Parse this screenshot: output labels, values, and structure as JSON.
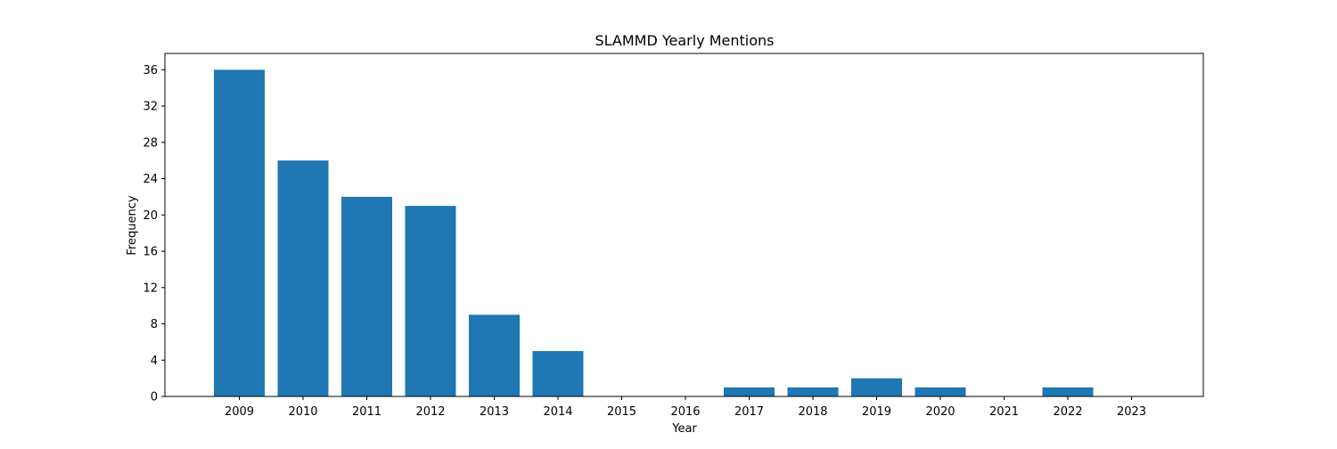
{
  "chart_data": {
    "type": "bar",
    "title": "SLAMMD Yearly Mentions",
    "xlabel": "Year",
    "ylabel": "Frequency",
    "categories": [
      "2009",
      "2010",
      "2011",
      "2012",
      "2013",
      "2014",
      "2015",
      "2016",
      "2017",
      "2018",
      "2019",
      "2020",
      "2021",
      "2022",
      "2023"
    ],
    "values": [
      36,
      26,
      22,
      21,
      9,
      5,
      0,
      0,
      1,
      1,
      2,
      1,
      0,
      1,
      0
    ],
    "ylim": [
      0,
      37.8
    ],
    "yticks": [
      0,
      4,
      8,
      12,
      16,
      20,
      24,
      28,
      32,
      36
    ],
    "grid": false,
    "bar_color": "#1f77b4"
  }
}
